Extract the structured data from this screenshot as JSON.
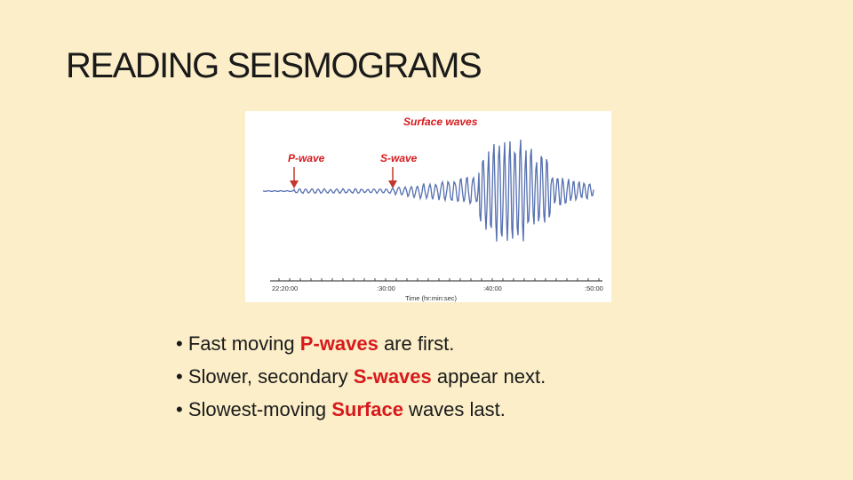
{
  "slide": {
    "title": "READING SEISMOGRAMS"
  },
  "figure": {
    "labels": {
      "surface": "Surface waves",
      "p_wave": "P-wave",
      "s_wave": "S-wave"
    },
    "ticks": [
      "22:20:00",
      ":30:00",
      ":40:00",
      ":50:00"
    ],
    "axis_label": "Time (hr:min:sec)",
    "trace_color": "#5670b0",
    "label_color": "#d7191c"
  },
  "bullets": [
    {
      "pre": "Fast moving ",
      "hl": "P-waves",
      "post": " are first."
    },
    {
      "pre": "Slower, secondary ",
      "hl": "S-waves",
      "post": " appear next."
    },
    {
      "pre": "Slowest-moving ",
      "hl": "Surface",
      "post": " waves last."
    }
  ],
  "bullet_glyph": "•",
  "colors": {
    "background": "#fbeec8",
    "highlight": "#d7191c"
  }
}
